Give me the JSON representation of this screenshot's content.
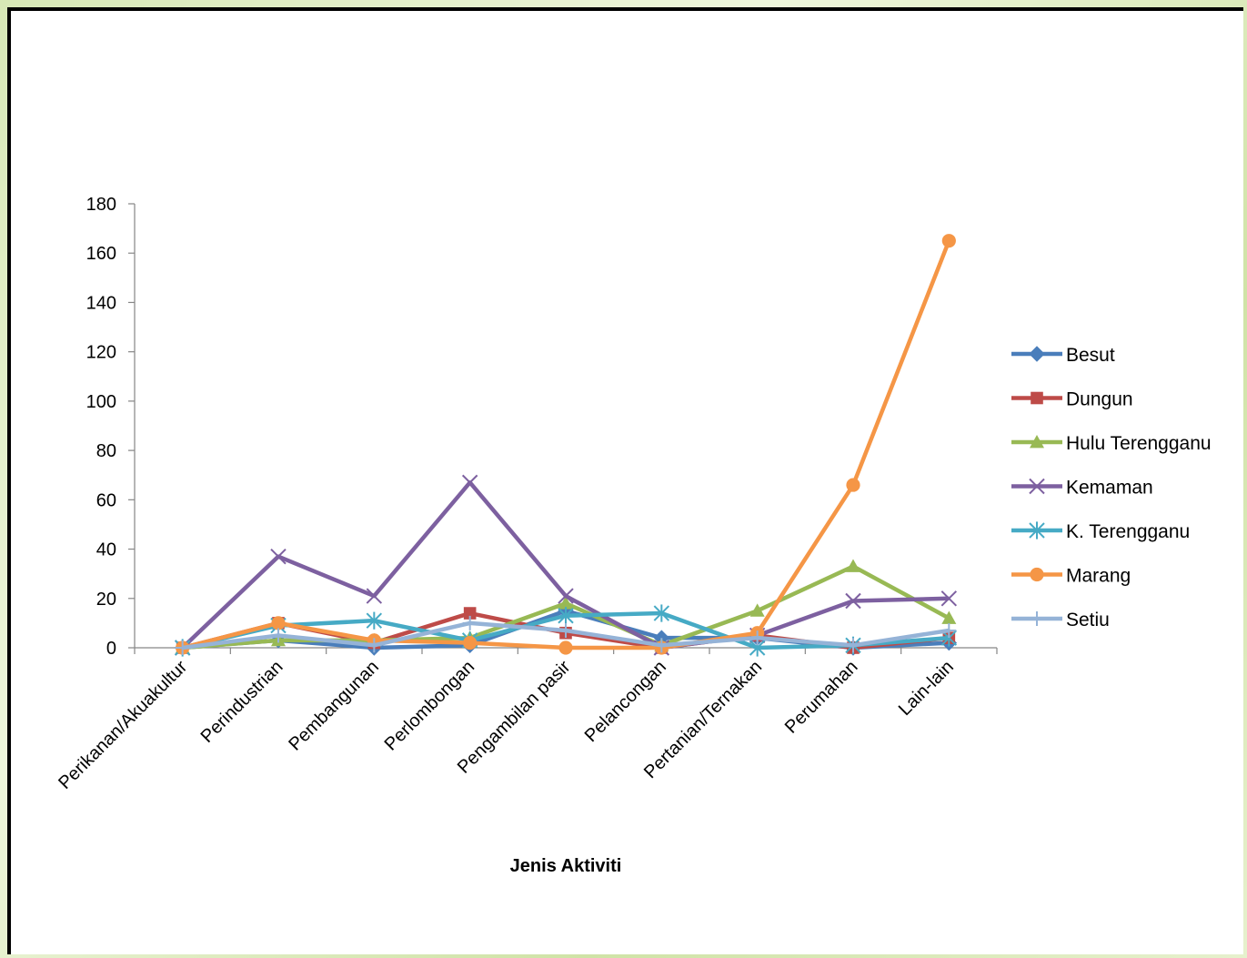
{
  "chart_data": {
    "type": "line",
    "title": "",
    "xlabel": "Jenis Aktiviti",
    "ylabel": "",
    "ylim": [
      0,
      180
    ],
    "yticks": [
      0,
      20,
      40,
      60,
      80,
      100,
      120,
      140,
      160,
      180
    ],
    "grid": false,
    "legend_position": "right",
    "categories": [
      "Perikanan/Akuakultur",
      "Perindustrian",
      "Pembangunan",
      "Perlombongan",
      "Pengambilan pasir",
      "Pelancongan",
      "Pertanian/Ternakan",
      "Perumahan",
      "Lain-lain"
    ],
    "series": [
      {
        "name": "Besut",
        "color": "#4a7ebb",
        "marker": "diamond",
        "values": [
          0,
          3,
          0,
          1,
          15,
          4,
          4,
          0,
          2
        ]
      },
      {
        "name": "Dungun",
        "color": "#be4b48",
        "marker": "square",
        "values": [
          0,
          10,
          2,
          14,
          6,
          0,
          5,
          0,
          4
        ]
      },
      {
        "name": "Hulu Terengganu",
        "color": "#98b954",
        "marker": "triangle",
        "values": [
          0,
          3,
          3,
          4,
          18,
          1,
          15,
          33,
          12
        ]
      },
      {
        "name": "Kemaman",
        "color": "#7d60a0",
        "marker": "x",
        "values": [
          0,
          37,
          21,
          67,
          21,
          0,
          5,
          19,
          20
        ]
      },
      {
        "name": "K. Terengganu",
        "color": "#46aac5",
        "marker": "star",
        "values": [
          0,
          9,
          11,
          3,
          13,
          14,
          0,
          1,
          4
        ]
      },
      {
        "name": "Marang",
        "color": "#f59646",
        "marker": "circle",
        "values": [
          0,
          10,
          3,
          2,
          0,
          0,
          6,
          66,
          165
        ]
      },
      {
        "name": "Setiu",
        "color": "#95b3d7",
        "marker": "plus",
        "values": [
          0,
          5,
          1,
          10,
          7,
          1,
          4,
          1,
          7
        ]
      }
    ]
  }
}
